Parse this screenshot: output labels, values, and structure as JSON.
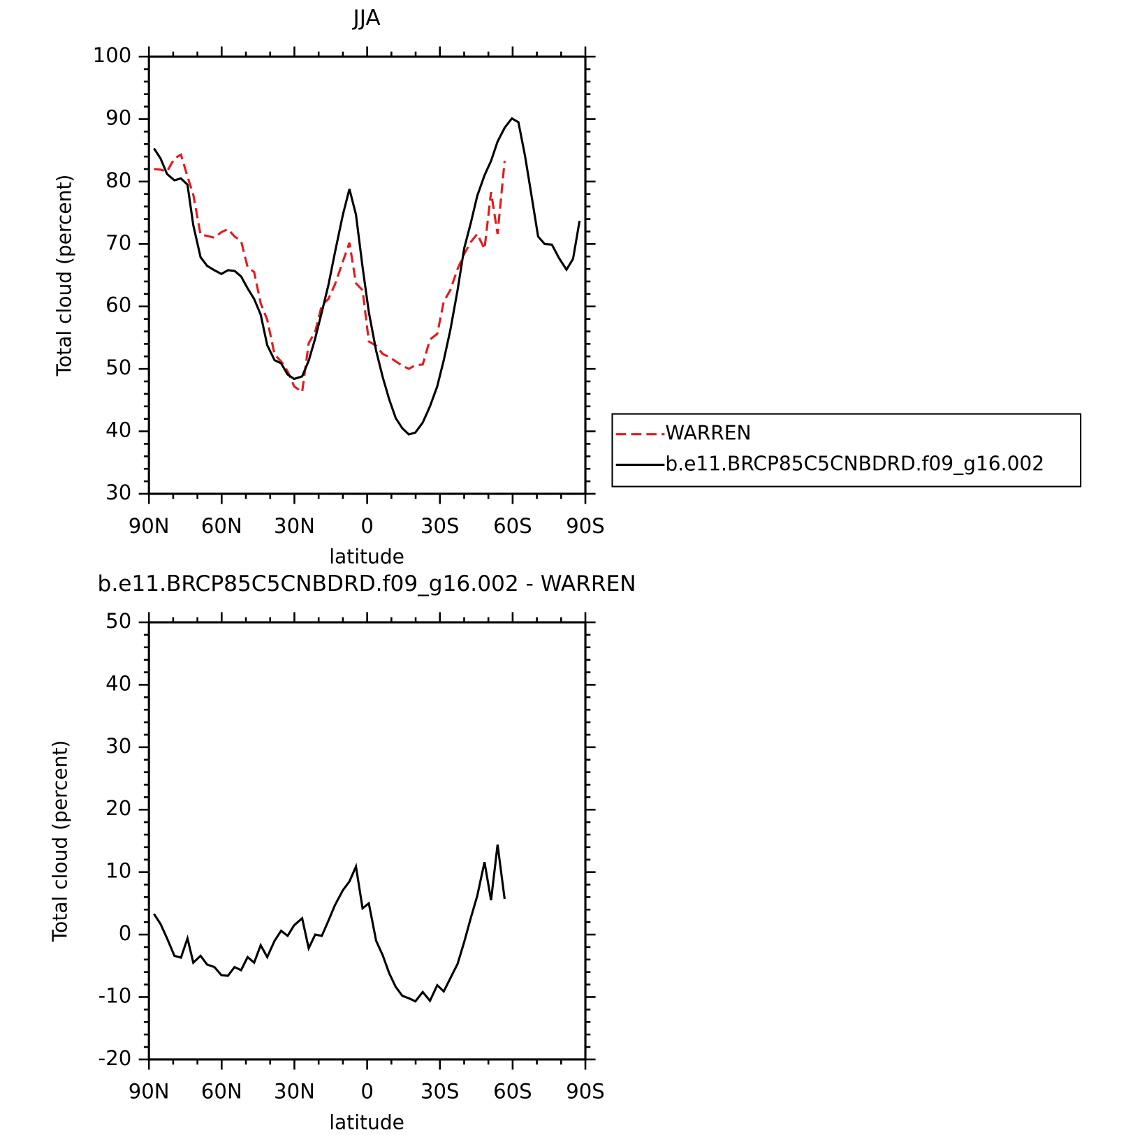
{
  "chart_data": [
    {
      "type": "line",
      "title": "JJA",
      "xlabel": "latitude",
      "ylabel": "Total cloud (percent)",
      "xlim": [
        90,
        -90
      ],
      "xticks": [
        {
          "value": 90,
          "label": "90N"
        },
        {
          "value": 60,
          "label": "60N"
        },
        {
          "value": 30,
          "label": "30N"
        },
        0,
        {
          "value": -30,
          "label": "30S"
        },
        {
          "value": -60,
          "label": "60S"
        },
        {
          "value": -90,
          "label": "90S"
        }
      ],
      "ylim": [
        30,
        100
      ],
      "yticks": [
        30,
        40,
        50,
        60,
        70,
        80,
        90,
        100
      ],
      "legend": "right",
      "x": [
        87.9,
        85.2,
        82.5,
        79.5,
        76.8,
        74.1,
        71.7,
        68.7,
        66.0,
        63.0,
        60.1,
        57.4,
        54.7,
        52.0,
        49.3,
        46.6,
        43.9,
        41.2,
        38.2,
        35.5,
        32.8,
        30.1,
        26.8,
        24.1,
        21.4,
        18.7,
        16.0,
        13.3,
        10.0,
        7.3,
        4.6,
        1.9,
        -0.7,
        -3.7,
        -6.4,
        -9.1,
        -11.8,
        -14.5,
        -17.2,
        -19.9,
        -22.9,
        -25.9,
        -28.9,
        -31.6,
        -34.3,
        -37.3,
        -40.0,
        -42.7,
        -45.4,
        -48.4,
        -51.1,
        -53.8,
        -56.7,
        -59.7,
        -62.4,
        -65.1,
        -67.8,
        -70.5,
        -73.2,
        -76.2,
        -79.2,
        -82.2,
        -84.9,
        -87.6
      ],
      "series": [
        {
          "name": "WARREN",
          "color": "#e41a1c",
          "linestyle": "dashed",
          "values": [
            82.0,
            81.9,
            81.6,
            83.7,
            84.3,
            80.8,
            77.9,
            71.5,
            71.3,
            71.0,
            71.9,
            72.4,
            71.2,
            70.5,
            66.3,
            65.5,
            60.5,
            57.9,
            52.3,
            51.2,
            49.6,
            47.2,
            46.3,
            54.1,
            56.0,
            60.2,
            61.2,
            63.5,
            67.2,
            70.2,
            63.7,
            62.6,
            54.4,
            53.7,
            52.4,
            51.9,
            51.2,
            50.5,
            50.0,
            50.6,
            50.7,
            54.7,
            55.6,
            60.8,
            62.6,
            66.0,
            68.4,
            70.3,
            71.6,
            69.2,
            78.3,
            71.6,
            83.3,
            null,
            null,
            null,
            null,
            null,
            null,
            null,
            null,
            null,
            null,
            null
          ]
        },
        {
          "name": "b.e11.BRCP85C5CNBDRD.f09_g16.002",
          "color": "#000000",
          "linestyle": "solid",
          "values": [
            85.3,
            83.7,
            81.2,
            80.2,
            80.5,
            79.5,
            73.0,
            67.9,
            66.5,
            65.8,
            65.2,
            65.8,
            65.7,
            64.8,
            62.9,
            61.2,
            58.7,
            53.8,
            51.4,
            50.9,
            49.1,
            48.4,
            48.8,
            51.3,
            54.9,
            59.1,
            63.4,
            68.6,
            74.7,
            78.8,
            74.7,
            66.3,
            59.1,
            52.9,
            48.7,
            45.1,
            42.1,
            40.5,
            39.5,
            39.8,
            41.4,
            44.0,
            47.2,
            51.4,
            56.2,
            62.6,
            69.3,
            73.3,
            77.7,
            81.0,
            83.3,
            86.4,
            88.6,
            90.1,
            89.5,
            84.1,
            77.7,
            71.2,
            70.0,
            69.9,
            67.7,
            65.9,
            67.6,
            73.7
          ]
        }
      ]
    },
    {
      "type": "line",
      "title": "b.e11.BRCP85C5CNBDRD.f09_g16.002 - WARREN",
      "xlabel": "latitude",
      "ylabel": "Total cloud (percent)",
      "xlim": [
        90,
        -90
      ],
      "xticks": [
        {
          "value": 90,
          "label": "90N"
        },
        {
          "value": 60,
          "label": "60N"
        },
        {
          "value": 30,
          "label": "30N"
        },
        0,
        {
          "value": -30,
          "label": "30S"
        },
        {
          "value": -60,
          "label": "60S"
        },
        {
          "value": -90,
          "label": "90S"
        }
      ],
      "ylim": [
        -20,
        50
      ],
      "yticks": [
        -20,
        -10,
        0,
        10,
        20,
        30,
        40,
        50
      ],
      "x": [
        87.9,
        85.2,
        82.5,
        79.5,
        76.8,
        74.1,
        71.7,
        68.7,
        66.0,
        63.0,
        60.1,
        57.4,
        54.7,
        52.0,
        49.3,
        46.6,
        43.9,
        41.2,
        38.2,
        35.5,
        32.8,
        30.1,
        26.8,
        24.1,
        21.4,
        18.7,
        16.0,
        13.3,
        10.0,
        7.3,
        4.6,
        1.9,
        -0.7,
        -3.7,
        -6.4,
        -9.1,
        -11.8,
        -14.5,
        -17.2,
        -19.9,
        -22.9,
        -25.9,
        -28.9,
        -31.6,
        -34.3,
        -37.3,
        -40.0,
        -42.7,
        -45.4,
        -48.4,
        -51.1,
        -53.8,
        -56.7
      ],
      "series": [
        {
          "color": "#000000",
          "linestyle": "solid",
          "values": [
            3.3,
            1.7,
            -0.6,
            -3.4,
            -3.7,
            -0.6,
            -4.5,
            -3.4,
            -4.8,
            -5.2,
            -6.5,
            -6.6,
            -5.2,
            -5.7,
            -3.6,
            -4.5,
            -1.7,
            -3.6,
            -1.0,
            0.6,
            -0.2,
            1.5,
            2.6,
            -2.2,
            0.0,
            -0.2,
            2.2,
            4.7,
            7.1,
            8.5,
            10.9,
            4.2,
            5.0,
            -1.0,
            -3.3,
            -6.2,
            -8.4,
            -9.8,
            -10.2,
            -10.7,
            -9.2,
            -10.6,
            -8.1,
            -9.1,
            -7.0,
            -4.7,
            -1.2,
            2.6,
            6.2,
            11.6,
            5.5,
            14.4,
            5.7
          ]
        }
      ]
    }
  ]
}
